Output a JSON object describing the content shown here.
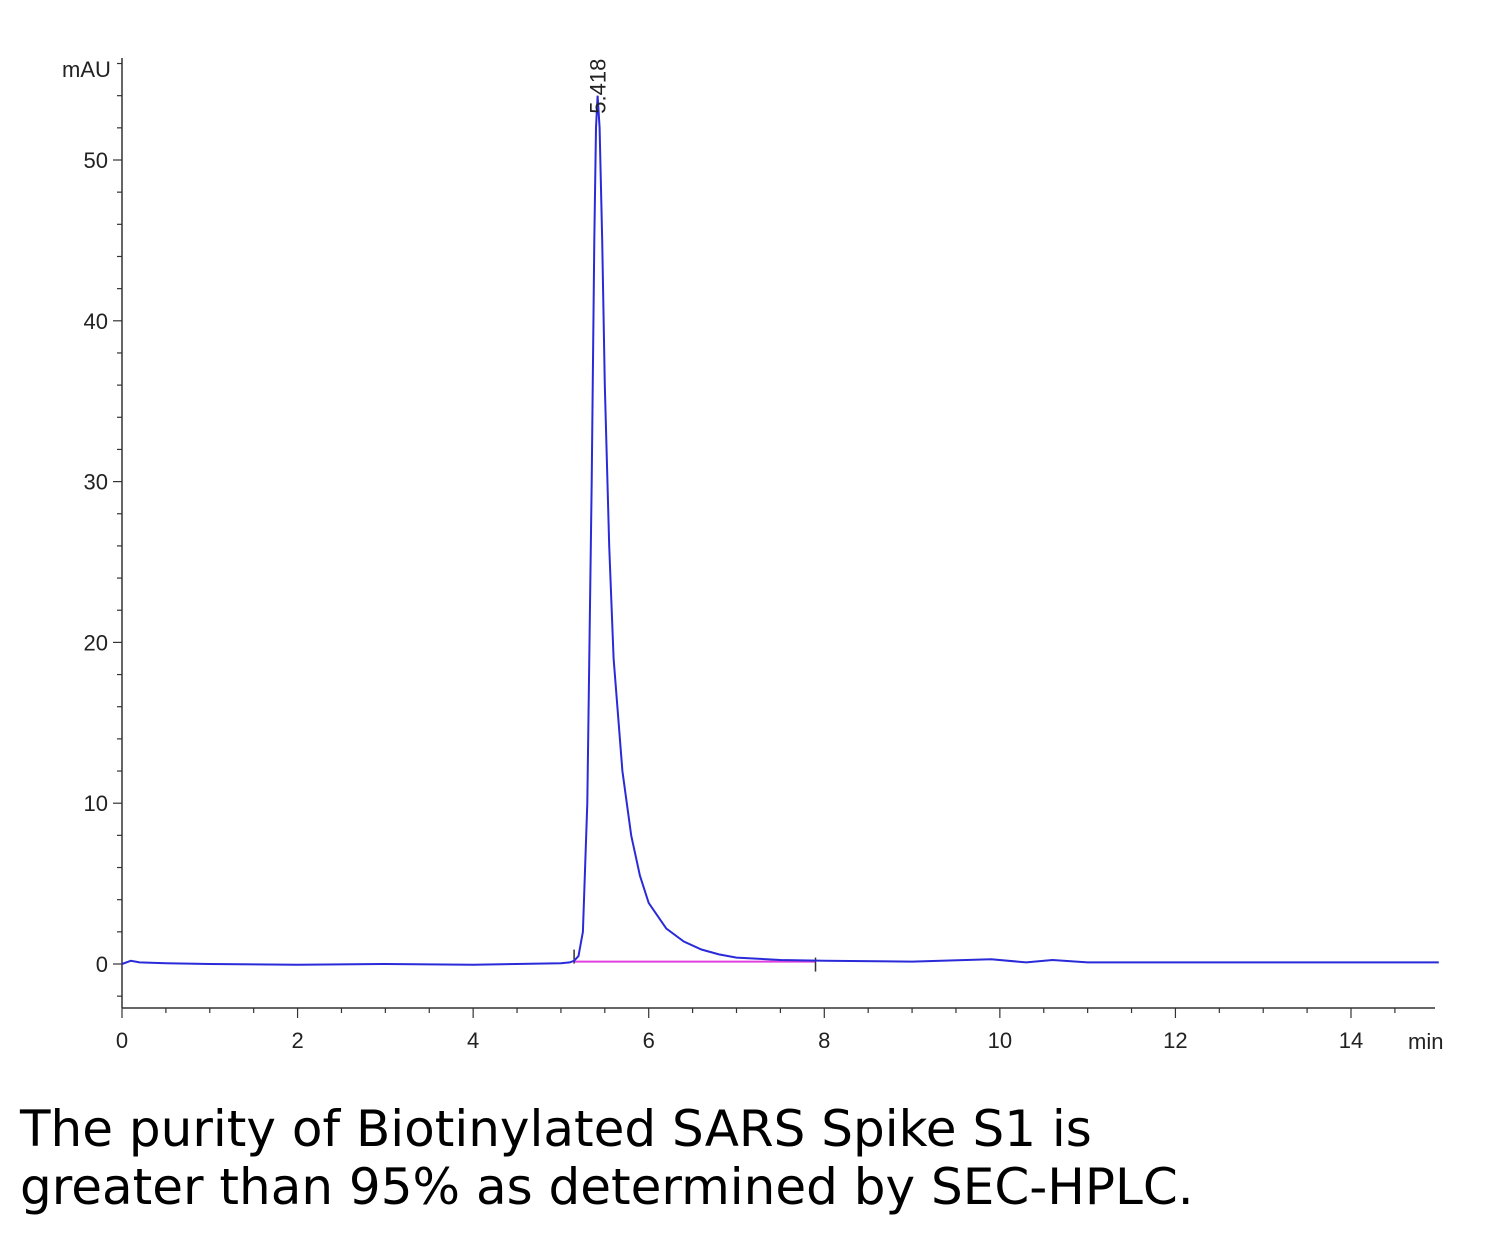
{
  "chart_data": {
    "type": "line",
    "ylabel": "mAU",
    "xlabel": "min",
    "xlim": [
      0,
      15
    ],
    "ylim": [
      -2.8,
      56
    ],
    "x_ticks": [
      0,
      2,
      4,
      6,
      8,
      10,
      12,
      14
    ],
    "y_ticks": [
      0,
      10,
      20,
      30,
      40,
      50
    ],
    "peaks": [
      {
        "x": 5.418,
        "y": 54.0,
        "label": "5.418"
      }
    ],
    "baseline": {
      "x_start": 5.15,
      "x_end": 7.9,
      "y": 0.15
    },
    "series": [
      {
        "color": "#2a2ad8",
        "x": [
          0,
          0.1,
          0.2,
          0.5,
          1.0,
          2.0,
          3.0,
          4.0,
          5.0,
          5.1,
          5.15,
          5.2,
          5.25,
          5.3,
          5.35,
          5.38,
          5.4,
          5.418,
          5.44,
          5.47,
          5.5,
          5.55,
          5.6,
          5.7,
          5.8,
          5.9,
          6.0,
          6.2,
          6.4,
          6.6,
          6.8,
          7.0,
          7.5,
          8.0,
          9.0,
          9.9,
          10.3,
          10.6,
          11.0,
          12.0,
          13.0,
          14.0,
          15.0
        ],
        "y": [
          0.0,
          0.2,
          0.1,
          0.05,
          0.0,
          -0.05,
          0.0,
          -0.05,
          0.05,
          0.1,
          0.2,
          0.5,
          2.0,
          10.0,
          30.0,
          45.0,
          52.0,
          54.0,
          52.0,
          45.0,
          36.0,
          26.0,
          19.0,
          12.0,
          8.0,
          5.5,
          3.8,
          2.2,
          1.4,
          0.9,
          0.6,
          0.4,
          0.25,
          0.2,
          0.15,
          0.3,
          0.1,
          0.25,
          0.1,
          0.1,
          0.1,
          0.1,
          0.1
        ]
      }
    ]
  },
  "caption": "The purity of Biotinylated SARS Spike S1 is\ngreater than 95% as determined by SEC-HPLC."
}
